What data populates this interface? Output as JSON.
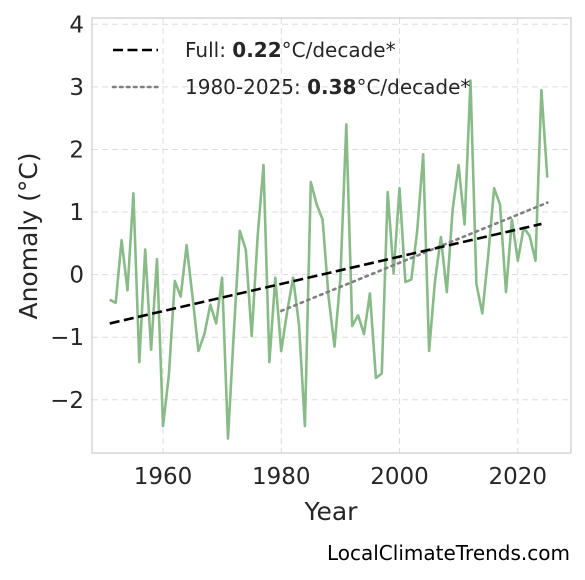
{
  "chart_data": {
    "type": "line",
    "title": "",
    "xlabel": "Year",
    "ylabel": "Anomaly (°C)",
    "xlim": [
      1948,
      2029
    ],
    "ylim": [
      -2.85,
      4.1
    ],
    "x_ticks": [
      1960,
      1980,
      2000,
      2020
    ],
    "y_ticks": [
      -2,
      -1,
      0,
      1,
      2,
      3,
      4
    ],
    "y_tick_labels": [
      "−2",
      "−1",
      "0",
      "1",
      "2",
      "3",
      "4"
    ],
    "grid": true,
    "legend_position": "top-left",
    "colors": {
      "series": "#88bb88",
      "trend_full": "#000000",
      "trend_recent": "#808080",
      "grid": "#dddddd",
      "axes": "#cccccc"
    },
    "series": [
      {
        "x": [
          1951,
          1952,
          1953,
          1954,
          1955,
          1956,
          1957,
          1958,
          1959,
          1960,
          1961,
          1962,
          1963,
          1964,
          1965,
          1966,
          1967,
          1968,
          1969,
          1970,
          1971,
          1972,
          1973,
          1974,
          1975,
          1976,
          1977,
          1978,
          1979,
          1980,
          1981,
          1982,
          1983,
          1984,
          1985,
          1986,
          1987,
          1988,
          1989,
          1990,
          1991,
          1992,
          1993,
          1994,
          1995,
          1996,
          1997,
          1998,
          1999,
          2000,
          2001,
          2002,
          2003,
          2004,
          2005,
          2006,
          2007,
          2008,
          2009,
          2010,
          2011,
          2012,
          2013,
          2014,
          2015,
          2016,
          2017,
          2018,
          2019,
          2020,
          2021,
          2022,
          2023,
          2024,
          2025
        ],
        "values": [
          -0.4,
          -0.45,
          0.55,
          -0.25,
          1.3,
          -1.4,
          0.4,
          -1.2,
          0.25,
          -2.42,
          -1.6,
          -0.1,
          -0.35,
          0.47,
          -0.35,
          -1.22,
          -0.95,
          -0.48,
          -0.78,
          -0.05,
          -2.62,
          -0.9,
          0.7,
          0.4,
          -0.98,
          0.6,
          1.75,
          -1.4,
          -0.05,
          -1.22,
          -0.6,
          -0.05,
          -0.8,
          -2.42,
          1.48,
          1.12,
          0.88,
          -0.35,
          -1.15,
          -0.05,
          2.4,
          -0.82,
          -0.65,
          -0.95,
          -0.3,
          -1.65,
          -1.58,
          1.32,
          0.02,
          1.38,
          -0.12,
          -0.08,
          0.7,
          1.92,
          -1.22,
          -0.1,
          0.6,
          -0.28,
          1.05,
          1.75,
          0.8,
          3.1,
          -0.15,
          -0.62,
          0.3,
          1.38,
          1.12,
          -0.28,
          0.88,
          0.22,
          0.75,
          0.62,
          0.22,
          2.95,
          1.55
        ]
      }
    ],
    "trend_full": {
      "x": [
        1951,
        2024
      ],
      "values": [
        -0.78,
        0.81
      ],
      "label_prefix": "Full: ",
      "label_value": "0.22",
      "label_suffix": "°C/decade*"
    },
    "trend_recent": {
      "x": [
        1980,
        2025
      ],
      "values": [
        -0.58,
        1.15
      ],
      "label_prefix": "1980-2025: ",
      "label_value": "0.38",
      "label_suffix": "°C/decade*"
    }
  },
  "watermark": "LocalClimateTrends.com"
}
